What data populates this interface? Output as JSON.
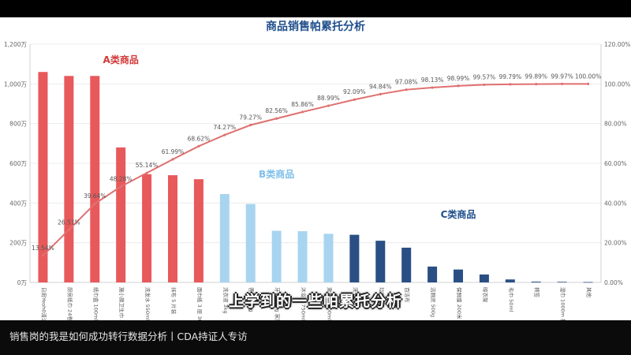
{
  "colors": {
    "group_a": "#e8595b",
    "group_b": "#a8d4f0",
    "group_c": "#2a4f84",
    "line": "#e07070",
    "title": "#1f4e8c",
    "label_a": "#d33a3a",
    "label_b": "#7fc0ea",
    "label_c": "#1f4e8c"
  },
  "subtitle": "上学到的一些帕累托分析",
  "caption": "销售岗的我是如何成功转行数据分析丨CDA持证人专访",
  "chart_data": {
    "type": "bar",
    "title": "商品销售帕累托分析",
    "y_left": {
      "ylim": [
        0,
        1200
      ],
      "ticks": [
        0,
        200,
        400,
        600,
        800,
        1000,
        1200
      ],
      "tick_labels": [
        "0万",
        "200万",
        "400万",
        "600万",
        "800万",
        "1,000万",
        "1,200万"
      ]
    },
    "y_right": {
      "ylim": [
        0,
        120
      ],
      "ticks": [
        0,
        20,
        40,
        60,
        80,
        100,
        120
      ],
      "tick_labels": [
        "0.00%",
        "20.00%",
        "40.00%",
        "60.00%",
        "80.00%",
        "100.00%",
        "120.00%"
      ]
    },
    "grid": true,
    "categories": [
      "日用Yeoh0清洁剂",
      "厨房纸巾 24卷",
      "纸巾盒 100ml 套装",
      "施小旗卫生巾 250g",
      "洗发水 550ml 瓶装",
      "抹布 5 片装",
      "面巾纸 3 层 300抽",
      "洗衣液 3kg",
      "香皂 125g",
      "牙膏 120g 家庭装",
      "沐浴露 750ml",
      "漱口水 500ml",
      "洗手液",
      "垃圾袋",
      "百洁布",
      "洁厕灵 500g",
      "保鲜膜 200米 纸",
      "晾衣架",
      "毛巾 50ml",
      "棉签",
      "湿巾 1000m 抽",
      "其他"
    ],
    "values": [
      1060,
      1040,
      1040,
      680,
      545,
      540,
      520,
      445,
      395,
      260,
      258,
      245,
      240,
      210,
      175,
      80,
      65,
      40,
      15,
      4,
      3,
      2
    ],
    "groups": [
      "A",
      "A",
      "A",
      "A",
      "A",
      "A",
      "A",
      "B",
      "B",
      "B",
      "B",
      "B",
      "C",
      "C",
      "C",
      "C",
      "C",
      "C",
      "C",
      "C",
      "C",
      "C"
    ],
    "cumulative_pct": [
      13.54,
      26.51,
      39.64,
      48.28,
      55.14,
      61.99,
      68.62,
      74.27,
      79.27,
      82.56,
      85.86,
      88.99,
      92.09,
      94.84,
      97.08,
      98.13,
      98.99,
      99.57,
      99.79,
      99.89,
      99.97,
      100.0
    ],
    "pct_labels": [
      "13.54%",
      "26.51%",
      "39.64%",
      "48.28%",
      "55.14%",
      "61.99%",
      "68.62%",
      "74.27%",
      "79.27%",
      "82.56%",
      "85.86%",
      "88.99%",
      "92.09%",
      "94.84%",
      "97.08%",
      "98.13%",
      "98.99%",
      "99.57%",
      "99.79%",
      "99.89%",
      "99.97%",
      "100.00%"
    ],
    "group_labels": {
      "A": "A类商品",
      "B": "B类商品",
      "C": "C类商品"
    }
  }
}
